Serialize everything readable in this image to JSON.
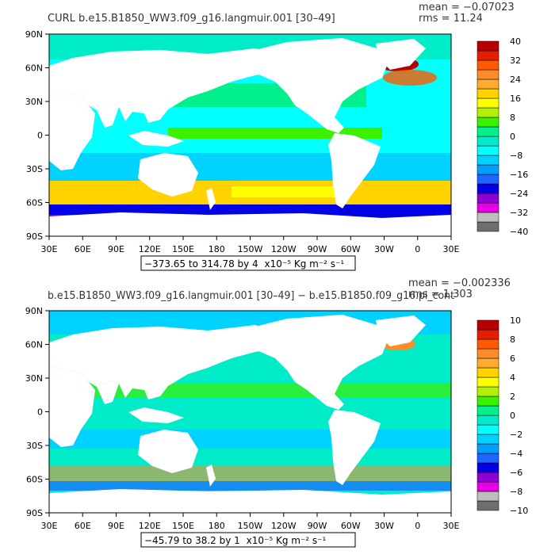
{
  "panels": [
    {
      "title": "CURL  b.e15.B1850_WW3.f09_g16.langmuir.001  [30–49]",
      "stats": [
        "mean = −0.07023",
        "rms = 11.24"
      ],
      "range_text": "−373.65 to 314.78 by 4",
      "units_text": "x10⁻⁵ Kg m⁻² s⁻¹",
      "lat_labels": [
        "90N",
        "60N",
        "30N",
        "0",
        "30S",
        "60S",
        "90S"
      ],
      "lon_labels": [
        "30E",
        "60E",
        "90E",
        "120E",
        "150E",
        "180",
        "150W",
        "120W",
        "90W",
        "60W",
        "30W",
        "0",
        "30E"
      ],
      "colorbar_labels": [
        "40",
        "32",
        "24",
        "16",
        "8",
        "0",
        "−8",
        "−16",
        "−24",
        "−32",
        "−40"
      ]
    },
    {
      "title": "b.e15.B1850_WW3.f09_g16.langmuir.001  [30–49]  −  b.e15.B1850.f09_g16.pi_cont",
      "stats": [
        "mean = −0.002336",
        "rms = 1.303"
      ],
      "range_text": "−45.79 to 38.2 by 1",
      "units_text": "x10⁻⁵ Kg m⁻² s⁻¹",
      "lat_labels": [
        "90N",
        "60N",
        "30N",
        "0",
        "30S",
        "60S",
        "90S"
      ],
      "lon_labels": [
        "30E",
        "60E",
        "90E",
        "120E",
        "150E",
        "180",
        "150W",
        "120W",
        "90W",
        "60W",
        "30W",
        "0",
        "30E"
      ],
      "colorbar_labels": [
        "10",
        "8",
        "6",
        "4",
        "2",
        "0",
        "−2",
        "−4",
        "−6",
        "−8",
        "−10"
      ]
    }
  ],
  "colorbar_colors": [
    "#6e6e6e",
    "#bebebe",
    "#e600e6",
    "#8c00d2",
    "#0000e6",
    "#1e64ff",
    "#00a0ff",
    "#00d2ff",
    "#00ffff",
    "#00ebc8",
    "#00f08c",
    "#3cf000",
    "#b4f000",
    "#ffff00",
    "#ffd200",
    "#ffaa32",
    "#ff8c28",
    "#ff5a00",
    "#e61e00",
    "#b40000"
  ],
  "land_color": "#ffffff",
  "map_colors": {
    "polar": "#00ebc8",
    "ocean": "#00ffff",
    "subtropic": "#00d2ff",
    "north_pacific": "#00f08c",
    "equatorial": "#3cf000",
    "southern_band": "#ffd200",
    "southern_core": "#ffff00",
    "southern_ocean": "#0000e6",
    "southern_edge": "#8c00d2",
    "antarctic_edge": "#e600e6",
    "north_atlantic_hot": "#b40000",
    "coast_hot": "#ff5a00",
    "diff_ocean": "#00ebc8",
    "diff_cool": "#00d2ff",
    "diff_warm": "#3cf000",
    "diff_hot": "#ff8c28",
    "diff_cold": "#1e64ff"
  }
}
